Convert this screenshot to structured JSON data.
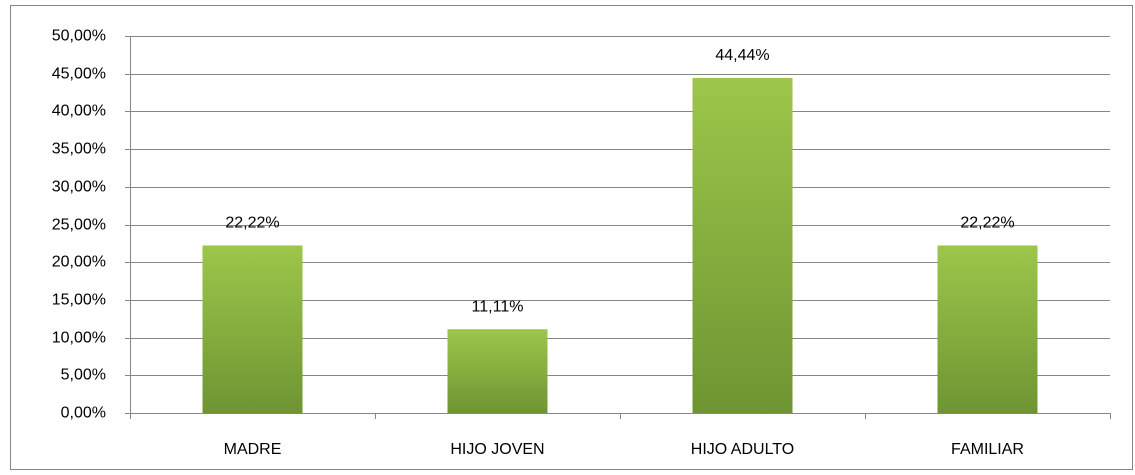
{
  "chart_data": {
    "type": "bar",
    "categories": [
      "MADRE",
      "HIJO JOVEN",
      "HIJO ADULTO",
      "FAMILIAR"
    ],
    "values": [
      22.22,
      11.11,
      44.44,
      22.22
    ],
    "value_labels": [
      "22,22%",
      "11,11%",
      "44,44%",
      "22,22%"
    ],
    "color": "#8db743",
    "ylim": [
      0,
      50
    ],
    "yticks": [
      {
        "value": 0,
        "label": "0,00%"
      },
      {
        "value": 5,
        "label": "5,00%"
      },
      {
        "value": 10,
        "label": "10,00%"
      },
      {
        "value": 15,
        "label": "15,00%"
      },
      {
        "value": 20,
        "label": "20,00%"
      },
      {
        "value": 25,
        "label": "25,00%"
      },
      {
        "value": 30,
        "label": "30,00%"
      },
      {
        "value": 35,
        "label": "35,00%"
      },
      {
        "value": 40,
        "label": "40,00%"
      },
      {
        "value": 45,
        "label": "45,00%"
      },
      {
        "value": 50,
        "label": "50,00%"
      }
    ],
    "grid": true
  }
}
